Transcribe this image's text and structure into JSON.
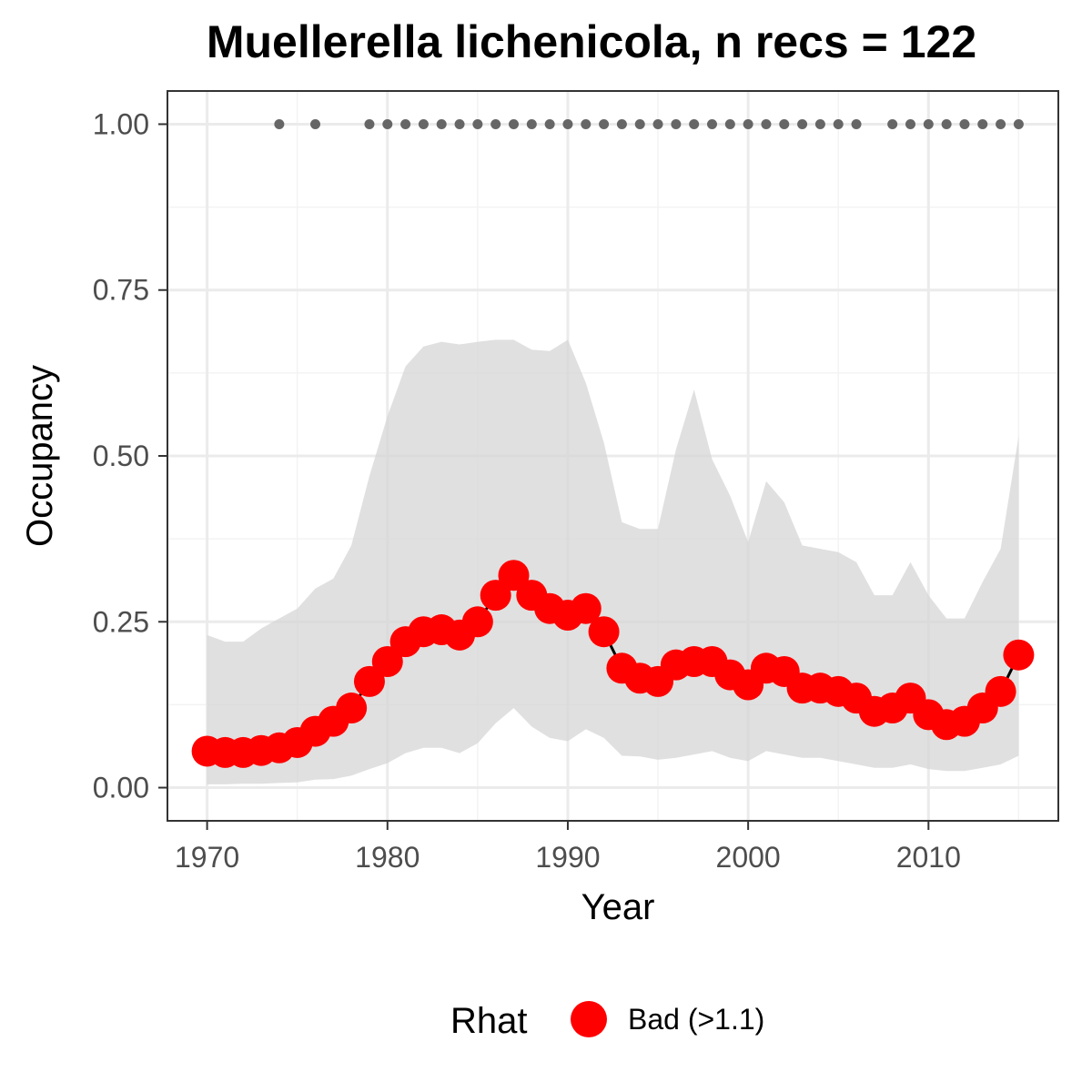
{
  "chart_data": {
    "type": "line",
    "title": "Muellerella lichenicola, n recs = 122",
    "xlabel": "Year",
    "ylabel": "Occupancy",
    "xlim": [
      1967.8,
      2017.2
    ],
    "ylim": [
      -0.05,
      1.05
    ],
    "x_ticks": [
      1970,
      1980,
      1990,
      2000,
      2010
    ],
    "y_ticks": [
      0.0,
      0.25,
      0.5,
      0.75,
      1.0
    ],
    "x_tick_labels": [
      "1970",
      "1980",
      "1990",
      "2000",
      "2010"
    ],
    "y_tick_labels": [
      "0.00",
      "0.25",
      "0.50",
      "0.75",
      "1.00"
    ],
    "grid": true,
    "years": [
      1970,
      1971,
      1972,
      1973,
      1974,
      1975,
      1976,
      1977,
      1978,
      1979,
      1980,
      1981,
      1982,
      1983,
      1984,
      1985,
      1986,
      1987,
      1988,
      1989,
      1990,
      1991,
      1992,
      1993,
      1994,
      1995,
      1996,
      1997,
      1998,
      1999,
      2000,
      2001,
      2002,
      2003,
      2004,
      2005,
      2006,
      2007,
      2008,
      2009,
      2010,
      2011,
      2012,
      2013,
      2014,
      2015
    ],
    "series": [
      {
        "values": [
          0.055,
          0.053,
          0.053,
          0.056,
          0.06,
          0.068,
          0.085,
          0.1,
          0.12,
          0.16,
          0.19,
          0.22,
          0.235,
          0.238,
          0.23,
          0.25,
          0.29,
          0.32,
          0.29,
          0.27,
          0.26,
          0.27,
          0.235,
          0.18,
          0.165,
          0.16,
          0.185,
          0.19,
          0.19,
          0.17,
          0.155,
          0.18,
          0.175,
          0.15,
          0.15,
          0.145,
          0.135,
          0.115,
          0.12,
          0.135,
          0.11,
          0.095,
          0.1,
          0.12,
          0.145,
          0.2
        ]
      }
    ],
    "credible_interval": {
      "lower": [
        0.005,
        0.005,
        0.006,
        0.006,
        0.007,
        0.008,
        0.012,
        0.013,
        0.018,
        0.028,
        0.037,
        0.052,
        0.06,
        0.06,
        0.052,
        0.067,
        0.097,
        0.12,
        0.092,
        0.075,
        0.07,
        0.088,
        0.075,
        0.048,
        0.047,
        0.042,
        0.045,
        0.05,
        0.055,
        0.045,
        0.04,
        0.055,
        0.05,
        0.045,
        0.045,
        0.04,
        0.035,
        0.03,
        0.03,
        0.035,
        0.028,
        0.025,
        0.025,
        0.03,
        0.035,
        0.048
      ],
      "upper": [
        0.23,
        0.22,
        0.22,
        0.24,
        0.255,
        0.27,
        0.3,
        0.315,
        0.365,
        0.47,
        0.56,
        0.635,
        0.665,
        0.672,
        0.668,
        0.672,
        0.675,
        0.675,
        0.66,
        0.658,
        0.675,
        0.61,
        0.52,
        0.4,
        0.39,
        0.39,
        0.51,
        0.6,
        0.495,
        0.44,
        0.37,
        0.462,
        0.43,
        0.365,
        0.36,
        0.355,
        0.34,
        0.29,
        0.29,
        0.34,
        0.29,
        0.255,
        0.255,
        0.31,
        0.36,
        0.53
      ]
    },
    "record_years": [
      1974,
      1976,
      1979,
      1980,
      1981,
      1982,
      1983,
      1984,
      1985,
      1986,
      1987,
      1988,
      1989,
      1990,
      1991,
      1992,
      1993,
      1994,
      1995,
      1996,
      1997,
      1998,
      1999,
      2000,
      2001,
      2002,
      2003,
      2004,
      2005,
      2006,
      2008,
      2009,
      2010,
      2011,
      2012,
      2013,
      2014,
      2015
    ],
    "record_value": 1.0,
    "legend": {
      "title": "Rhat",
      "label": "Bad (>1.1)",
      "position": "bottom"
    },
    "colors": {
      "line": "#000000",
      "points": "#ff0000",
      "ribbon": "#d6d6d6",
      "records": "#666666",
      "grid_major": "#ebebeb",
      "grid_minor": "#f3f3f3",
      "panel_border": "#333333"
    }
  }
}
